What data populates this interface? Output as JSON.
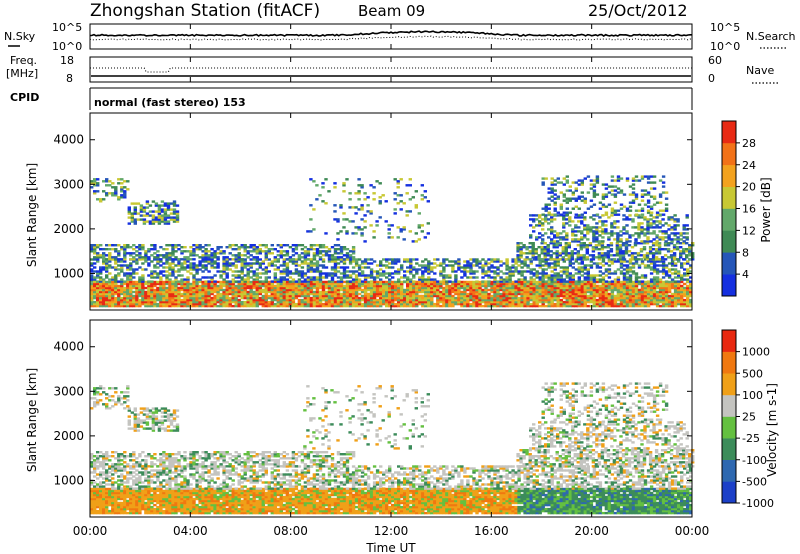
{
  "header": {
    "title": "Zhongshan Station (fitACF)",
    "beam": "Beam 09",
    "date": "25/Oct/2012"
  },
  "noise_panel": {
    "left_label": "N.Sky",
    "right_label": "N.Search",
    "left_ticks": [
      "10^5",
      "10^0"
    ],
    "right_ticks": [
      "10^5",
      "10^0"
    ]
  },
  "freq_panel": {
    "left_label_line1": "Freq.",
    "left_label_line2": "[MHz]",
    "right_label": "Nave",
    "left_ticks": [
      "18",
      "8"
    ],
    "right_ticks": [
      "60",
      "0"
    ]
  },
  "cpid": {
    "label": "CPID",
    "text": "normal (fast stereo) 153"
  },
  "chart_data": [
    {
      "type": "heatmap",
      "name": "power",
      "ylabel": "Slant Range [km]",
      "yticks": [
        "4000",
        "3000",
        "2000",
        "1000"
      ],
      "ylim": [
        180,
        4600
      ],
      "colorbar_label": "Power [dB]",
      "colorbar_ticks": [
        "28",
        "24",
        "20",
        "16",
        "12",
        "8",
        "4"
      ],
      "colors": [
        "#1530e0",
        "#2556b8",
        "#3f8a55",
        "#62a86a",
        "#c8c834",
        "#f3a21e",
        "#f27218",
        "#e82a14"
      ]
    },
    {
      "type": "heatmap",
      "name": "velocity",
      "ylabel": "Slant Range [km]",
      "yticks": [
        "4000",
        "3000",
        "2000",
        "1000"
      ],
      "ylim": [
        180,
        4600
      ],
      "colorbar_label": "Velocity [m s-1]",
      "colorbar_ticks": [
        "1000",
        "500",
        "100",
        "25",
        "-25",
        "-100",
        "-500",
        "-1000"
      ],
      "colors": [
        "#1c40c8",
        "#2e68b0",
        "#3c8c5a",
        "#64c040",
        "#c4c4c0",
        "#f0a018",
        "#f07810",
        "#e82810"
      ]
    }
  ],
  "xaxis": {
    "label": "Time UT",
    "ticks": [
      "00:00",
      "04:00",
      "08:00",
      "12:00",
      "16:00",
      "20:00",
      "00:00"
    ]
  }
}
